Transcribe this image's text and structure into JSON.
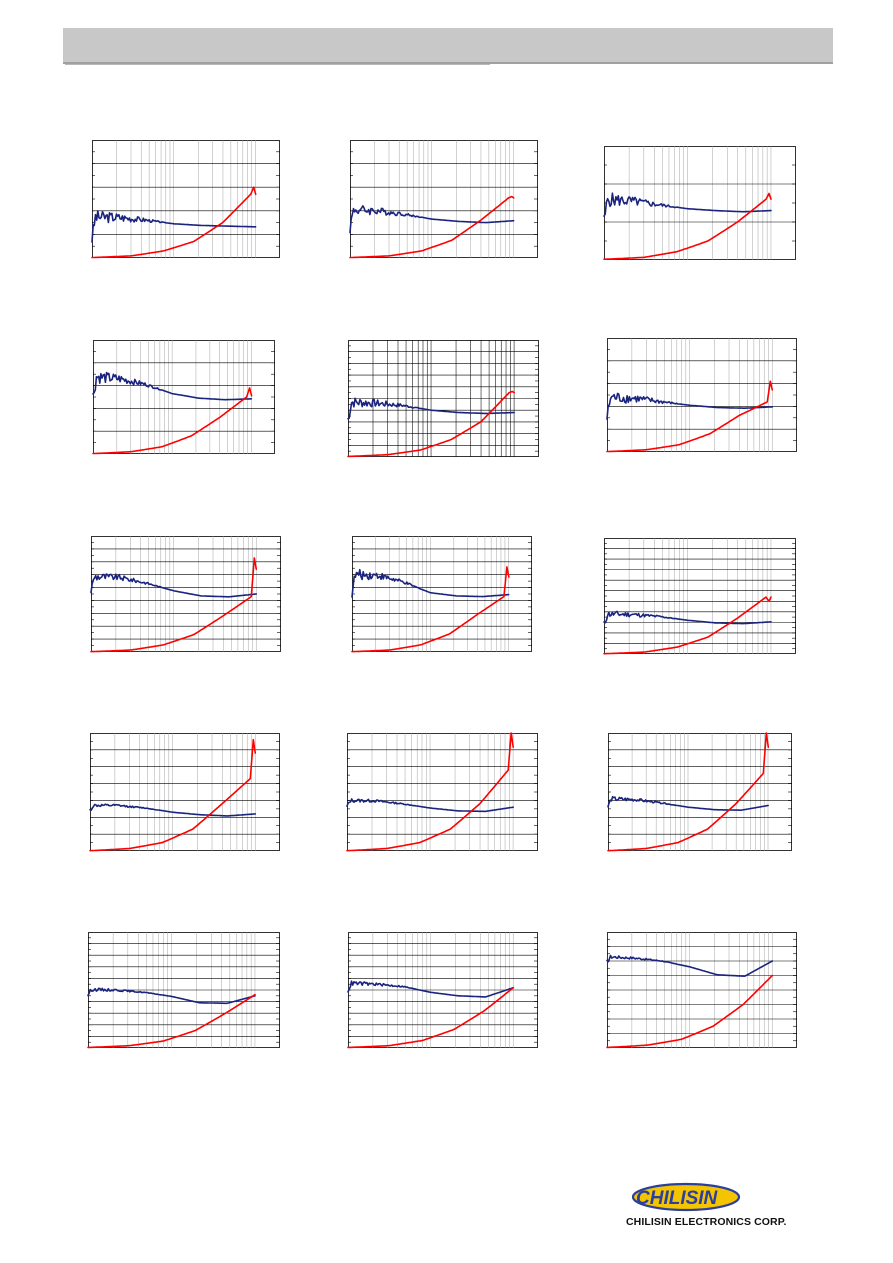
{
  "colors": {
    "header_bar": "#c8c8c8",
    "series_blue": "#1a237e",
    "series_red": "#ff0000",
    "logo_yellow": "#f5c400",
    "logo_blue": "#2a3f9e"
  },
  "logo": {
    "word": "CHILISIN",
    "company_name": "CHILISIN ELECTRONICS CORP."
  },
  "chart_data": [
    {
      "type": "line",
      "x_scale": "log",
      "x_decades": 2.3,
      "dense_grid": false,
      "hlines": 5,
      "ylim": [
        0,
        5
      ],
      "series": [
        {
          "values": [
            1.75,
            1.72,
            1.6,
            1.45,
            1.38,
            1.35,
            1.32
          ],
          "noise": 0.3
        },
        {
          "values": [
            0.02,
            0.09,
            0.3,
            0.7,
            1.5,
            2.7
          ],
          "peak": 3.0
        }
      ]
    },
    {
      "type": "line",
      "x_scale": "log",
      "x_decades": 2.3,
      "dense_grid": false,
      "hlines": 5,
      "ylim": [
        0,
        5
      ],
      "series": [
        {
          "values": [
            2.05,
            2.0,
            1.85,
            1.65,
            1.55,
            1.5,
            1.58
          ],
          "noise": 0.25
        },
        {
          "values": [
            0.02,
            0.09,
            0.3,
            0.75,
            1.6,
            2.55
          ],
          "peak": 2.6
        }
      ]
    },
    {
      "type": "line",
      "x_scale": "log",
      "x_decades": 2.3,
      "dense_grid": false,
      "hlines": 3,
      "ylim": [
        0,
        3
      ],
      "series": [
        {
          "values": [
            1.6,
            1.55,
            1.45,
            1.35,
            1.3,
            1.27,
            1.3
          ],
          "noise": 0.2
        },
        {
          "values": [
            0.02,
            0.07,
            0.22,
            0.5,
            1.0,
            1.6
          ],
          "peak": 1.75
        }
      ]
    },
    {
      "type": "line",
      "x_scale": "log",
      "x_decades": 2.3,
      "dense_grid": false,
      "hlines": 5,
      "ylim": [
        0,
        5
      ],
      "series": [
        {
          "values": [
            3.4,
            3.3,
            3.05,
            2.65,
            2.45,
            2.38,
            2.42
          ],
          "noise": 0.3
        },
        {
          "values": [
            0.02,
            0.1,
            0.32,
            0.8,
            1.6,
            2.5
          ],
          "peak": 2.9
        }
      ]
    },
    {
      "type": "line",
      "x_scale": "log",
      "x_decades": 2.3,
      "dense_grid": true,
      "hlines": 10,
      "ylim": [
        0,
        10
      ],
      "series": [
        {
          "values": [
            4.7,
            4.6,
            4.4,
            4.0,
            3.8,
            3.72,
            3.8
          ],
          "noise": 0.5
        },
        {
          "values": [
            0.05,
            0.2,
            0.6,
            1.5,
            3.0,
            5.5
          ],
          "peak": 5.6
        }
      ]
    },
    {
      "type": "line",
      "x_scale": "log",
      "x_decades": 2.3,
      "dense_grid": false,
      "hlines": 5,
      "ylim": [
        0,
        5
      ],
      "series": [
        {
          "values": [
            2.4,
            2.35,
            2.2,
            2.05,
            1.95,
            1.92,
            1.98
          ],
          "noise": 0.3
        },
        {
          "values": [
            0.02,
            0.1,
            0.32,
            0.8,
            1.6,
            2.2
          ],
          "peak": 3.1
        }
      ]
    },
    {
      "type": "line",
      "x_scale": "log",
      "x_decades": 2.3,
      "dense_grid": false,
      "hlines": 9,
      "ylim": [
        0,
        9
      ],
      "series": [
        {
          "values": [
            5.85,
            5.8,
            5.35,
            4.75,
            4.35,
            4.28,
            4.5
          ],
          "noise": 0.35
        },
        {
          "values": [
            0.03,
            0.15,
            0.55,
            1.35,
            2.8,
            4.3
          ],
          "peak": 7.3
        }
      ]
    },
    {
      "type": "line",
      "x_scale": "log",
      "x_decades": 2.3,
      "dense_grid": false,
      "hlines": 9,
      "ylim": [
        0,
        9
      ],
      "series": [
        {
          "values": [
            6.0,
            5.95,
            5.4,
            4.6,
            4.35,
            4.3,
            4.45
          ],
          "noise": 0.45
        },
        {
          "values": [
            0.03,
            0.15,
            0.55,
            1.4,
            2.9,
            4.3
          ],
          "peak": 6.6
        }
      ]
    },
    {
      "type": "line",
      "x_scale": "log",
      "x_decades": 2.3,
      "dense_grid": false,
      "hlines": 11,
      "ylim": [
        0,
        11
      ],
      "series": [
        {
          "values": [
            3.8,
            3.75,
            3.55,
            3.2,
            2.95,
            2.88,
            3.05
          ],
          "noise": 0.35
        },
        {
          "values": [
            0.03,
            0.18,
            0.65,
            1.6,
            3.4,
            5.4
          ],
          "peak": 5.0
        }
      ]
    },
    {
      "type": "line",
      "x_scale": "log",
      "x_decades": 2.3,
      "dense_grid": false,
      "hlines": 7,
      "ylim": [
        0,
        7
      ],
      "series": [
        {
          "values": [
            2.7,
            2.7,
            2.55,
            2.3,
            2.15,
            2.08,
            2.2
          ],
          "noise": 0.1
        },
        {
          "values": [
            0.02,
            0.15,
            0.5,
            1.3,
            2.8,
            4.3
          ],
          "peak": 6.6
        }
      ]
    },
    {
      "type": "line",
      "x_scale": "log",
      "x_decades": 2.3,
      "dense_grid": false,
      "hlines": 7,
      "ylim": [
        0,
        7
      ],
      "series": [
        {
          "values": [
            3.0,
            2.98,
            2.8,
            2.55,
            2.38,
            2.35,
            2.6
          ],
          "noise": 0.12
        },
        {
          "values": [
            0.02,
            0.15,
            0.5,
            1.3,
            2.8,
            4.8
          ],
          "peak": 7.0
        }
      ]
    },
    {
      "type": "line",
      "x_scale": "log",
      "x_decades": 2.3,
      "dense_grid": false,
      "hlines": 7,
      "ylim": [
        0,
        7
      ],
      "series": [
        {
          "values": [
            3.1,
            3.05,
            2.85,
            2.6,
            2.45,
            2.42,
            2.7
          ],
          "noise": 0.15
        },
        {
          "values": [
            0.02,
            0.15,
            0.5,
            1.3,
            2.8,
            4.6
          ],
          "peak": 7.0
        }
      ]
    },
    {
      "type": "line",
      "x_scale": "log",
      "x_decades": 2.3,
      "dense_grid": false,
      "hlines": 10,
      "ylim": [
        0,
        10
      ],
      "series": [
        {
          "values": [
            5.05,
            5.0,
            4.8,
            4.45,
            3.9,
            3.85,
            4.5
          ],
          "noise": 0.15
        },
        {
          "values": [
            0.05,
            0.2,
            0.6,
            1.5,
            3.0,
            4.6
          ],
          "peak": null
        }
      ]
    },
    {
      "type": "line",
      "x_scale": "log",
      "x_decades": 2.3,
      "dense_grid": false,
      "hlines": 10,
      "ylim": [
        0,
        10
      ],
      "series": [
        {
          "values": [
            5.6,
            5.5,
            5.3,
            4.8,
            4.5,
            4.4,
            5.2
          ],
          "noise": 0.2
        },
        {
          "values": [
            0.05,
            0.2,
            0.65,
            1.6,
            3.2,
            5.2
          ],
          "peak": null
        }
      ]
    },
    {
      "type": "line",
      "x_scale": "log",
      "x_decades": 2.3,
      "dense_grid": false,
      "hlines": 8,
      "ylim": [
        0,
        8
      ],
      "series": [
        {
          "values": [
            6.3,
            6.2,
            6.0,
            5.6,
            5.05,
            4.95,
            6.0
          ],
          "noise": 0.12
        },
        {
          "values": [
            0.04,
            0.2,
            0.6,
            1.5,
            3.0,
            5.0
          ],
          "peak": null
        }
      ]
    }
  ]
}
